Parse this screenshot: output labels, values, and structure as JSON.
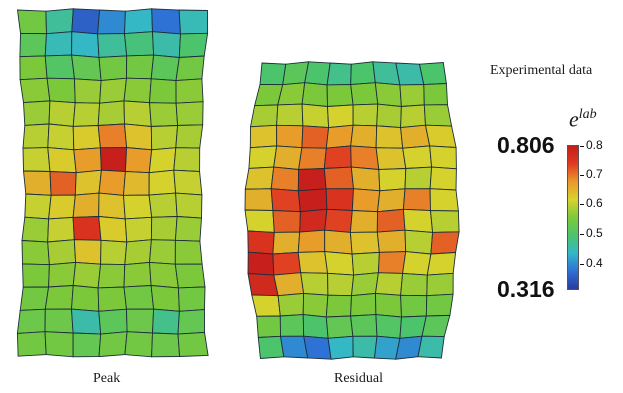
{
  "captions": {
    "peak": "Peak",
    "residual": "Residual"
  },
  "legend": {
    "title": "Experimental data",
    "symbol_base": "e",
    "symbol_sup": "lab",
    "max_value": "0.806",
    "min_value": "0.316",
    "ticks": [
      "0.8",
      "0.7",
      "0.6",
      "0.5",
      "0.4"
    ],
    "colormap": [
      "#2a3c9e",
      "#2f6fd6",
      "#33b8c8",
      "#4cc46c",
      "#7cc93a",
      "#d8d22e",
      "#e99a2a",
      "#e03a22",
      "#c41d1b"
    ]
  },
  "specimens": [
    {
      "name": "peak",
      "values": [
        [
          0.55,
          0.47,
          0.36,
          0.4,
          0.44,
          0.38,
          0.45
        ],
        [
          0.52,
          0.45,
          0.44,
          0.47,
          0.49,
          0.46,
          0.5
        ],
        [
          0.56,
          0.51,
          0.53,
          0.55,
          0.55,
          0.52,
          0.55
        ],
        [
          0.57,
          0.56,
          0.58,
          0.58,
          0.57,
          0.56,
          0.57
        ],
        [
          0.58,
          0.6,
          0.6,
          0.59,
          0.6,
          0.58,
          0.58
        ],
        [
          0.6,
          0.61,
          0.63,
          0.7,
          0.64,
          0.6,
          0.59
        ],
        [
          0.61,
          0.63,
          0.68,
          0.8,
          0.68,
          0.62,
          0.6
        ],
        [
          0.66,
          0.72,
          0.64,
          0.68,
          0.65,
          0.62,
          0.61
        ],
        [
          0.61,
          0.63,
          0.66,
          0.64,
          0.62,
          0.6,
          0.6
        ],
        [
          0.58,
          0.61,
          0.76,
          0.63,
          0.61,
          0.59,
          0.58
        ],
        [
          0.57,
          0.59,
          0.64,
          0.6,
          0.59,
          0.58,
          0.57
        ],
        [
          0.56,
          0.57,
          0.58,
          0.57,
          0.57,
          0.57,
          0.56
        ],
        [
          0.55,
          0.56,
          0.56,
          0.56,
          0.55,
          0.56,
          0.55
        ],
        [
          0.54,
          0.54,
          0.46,
          0.52,
          0.54,
          0.48,
          0.53
        ],
        [
          0.55,
          0.55,
          0.53,
          0.55,
          0.55,
          0.54,
          0.55
        ]
      ]
    },
    {
      "name": "residual",
      "values": [
        [
          0.5,
          0.52,
          0.5,
          0.48,
          0.5,
          0.47,
          0.46,
          0.5
        ],
        [
          0.56,
          0.57,
          0.56,
          0.56,
          0.56,
          0.57,
          0.58,
          0.56
        ],
        [
          0.59,
          0.6,
          0.61,
          0.62,
          0.6,
          0.59,
          0.6,
          0.58
        ],
        [
          0.64,
          0.68,
          0.72,
          0.68,
          0.66,
          0.64,
          0.66,
          0.63
        ],
        [
          0.62,
          0.66,
          0.7,
          0.74,
          0.7,
          0.64,
          0.62,
          0.62
        ],
        [
          0.64,
          0.7,
          0.8,
          0.72,
          0.66,
          0.62,
          0.6,
          0.62
        ],
        [
          0.66,
          0.74,
          0.8,
          0.76,
          0.68,
          0.66,
          0.7,
          0.62
        ],
        [
          0.62,
          0.72,
          0.78,
          0.74,
          0.66,
          0.72,
          0.62,
          0.6
        ],
        [
          0.76,
          0.66,
          0.68,
          0.66,
          0.64,
          0.66,
          0.6,
          0.72
        ],
        [
          0.8,
          0.74,
          0.64,
          0.62,
          0.6,
          0.7,
          0.62,
          0.62
        ],
        [
          0.78,
          0.66,
          0.6,
          0.6,
          0.58,
          0.6,
          0.58,
          0.58
        ],
        [
          0.62,
          0.58,
          0.57,
          0.56,
          0.56,
          0.56,
          0.55,
          0.55
        ],
        [
          0.55,
          0.52,
          0.5,
          0.53,
          0.52,
          0.51,
          0.5,
          0.52
        ],
        [
          0.5,
          0.4,
          0.38,
          0.44,
          0.46,
          0.42,
          0.4,
          0.46
        ]
      ]
    }
  ]
}
